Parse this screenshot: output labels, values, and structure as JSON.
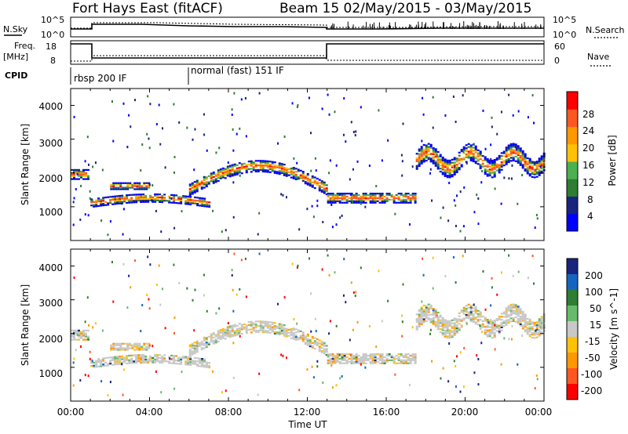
{
  "header": {
    "site": "Fort Hays East (fitACF)",
    "beam_info": "Beam 15 02/May/2015 - 03/May/2015"
  },
  "top_panels": {
    "nsky_label": "N.Sky",
    "nsky_ticks": [
      "10^5",
      "10^0"
    ],
    "nsearch_label": "N.Search",
    "nsearch_ticks": [
      "10^5",
      "10^0"
    ],
    "freq_label_1": "Freq.",
    "freq_label_2": "[MHz]",
    "freq_ticks": [
      "18",
      "8"
    ],
    "nave_label": "Nave",
    "nave_ticks": [
      "60",
      "0"
    ],
    "cpid_label": "CPID",
    "cpid_modes": [
      "rbsp 200 IF",
      "normal (fast) 151 IF"
    ]
  },
  "colors": {
    "power_scale": [
      "#0000ff",
      "#1a237e",
      "#2e7d32",
      "#4caf50",
      "#ffc107",
      "#ff9800",
      "#ff5722",
      "#ff0000"
    ],
    "velocity_scale": [
      "#1a237e",
      "#1565c0",
      "#2e7d32",
      "#66bb6a",
      "#c8c8c8",
      "#ffc107",
      "#ff9800",
      "#ff5722",
      "#ff0000"
    ]
  },
  "chart_data": [
    {
      "type": "heatmap",
      "title": "",
      "xlabel": "Time UT",
      "ylabel": "Slant Range [km]",
      "x_ticks": [
        "00:00",
        "04:00",
        "08:00",
        "12:00",
        "16:00",
        "20:00",
        "00:00"
      ],
      "y_ticks": [
        "1000",
        "2000",
        "3000",
        "4000"
      ],
      "colorbar": {
        "label": "Power [dB]",
        "ticks": [
          "4",
          "8",
          "12",
          "16",
          "20",
          "24",
          "28"
        ],
        "range": [
          0,
          30
        ]
      },
      "echo_bands": [
        {
          "start_hour": 0.0,
          "end_hour": 0.9,
          "range_km": 1950,
          "width_km": 300
        },
        {
          "start_hour": 1.0,
          "end_hour": 7.0,
          "range_km": 1150,
          "width_km": 250
        },
        {
          "start_hour": 6.0,
          "end_hour": 13.0,
          "range_km": 2000,
          "width_km": 350
        },
        {
          "start_hour": 2.0,
          "end_hour": 4.0,
          "range_km": 1600,
          "width_km": 200
        },
        {
          "start_hour": 13.0,
          "end_hour": 17.5,
          "range_km": 1250,
          "width_km": 300
        },
        {
          "start_hour": 17.5,
          "end_hour": 24.0,
          "range_km": 2450,
          "width_km": 500
        }
      ]
    },
    {
      "type": "heatmap",
      "title": "",
      "xlabel": "Time UT",
      "ylabel": "Slant Range [km]",
      "x_ticks": [
        "00:00",
        "04:00",
        "08:00",
        "12:00",
        "16:00",
        "20:00",
        "00:00"
      ],
      "y_ticks": [
        "1000",
        "2000",
        "3000",
        "4000"
      ],
      "colorbar": {
        "label": "Velocity [m s^-1]",
        "ticks": [
          "200",
          "100",
          "50",
          "15",
          "-15",
          "-50",
          "-100",
          "-200"
        ],
        "range": [
          -250,
          250
        ]
      },
      "ground_scatter_color": "#c8c8c8"
    }
  ]
}
